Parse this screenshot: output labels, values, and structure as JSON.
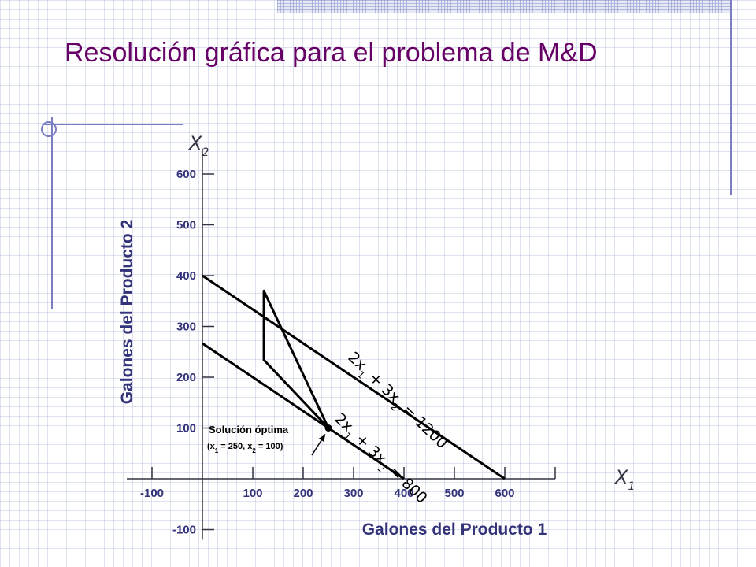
{
  "colors": {
    "title": "#660066",
    "text": "#33337a",
    "axis": "#333344",
    "line": "#000000",
    "decor": "#7b7fc1"
  },
  "chart_data": {
    "type": "line",
    "title": "Resolución gráfica para el problema de M&D",
    "xlabel": "Galones del Producto 1",
    "ylabel": "Galones del Producto 2",
    "x_axis_symbol": "X",
    "x_axis_sub": "1",
    "y_axis_symbol": "X",
    "y_axis_sub": "2",
    "xlim": [
      -150,
      700
    ],
    "ylim": [
      -120,
      650
    ],
    "x_ticks": [
      -100,
      100,
      200,
      300,
      400,
      500,
      600
    ],
    "y_ticks": [
      -100,
      100,
      200,
      300,
      400,
      500,
      600
    ],
    "series": [
      {
        "points": [
          [
            0,
            400
          ],
          [
            600,
            0
          ]
        ],
        "label_parts": [
          "2x",
          "1",
          " + 3x",
          "2",
          " = 1200"
        ]
      },
      {
        "points": [
          [
            0,
            266.7
          ],
          [
            400,
            0
          ]
        ],
        "label_parts": [
          "2x",
          "1",
          " + 3x",
          "2",
          " = 800"
        ]
      }
    ],
    "polygon": [
      [
        122,
        370
      ],
      [
        122,
        234
      ],
      [
        250,
        100
      ]
    ],
    "optimal_point": [
      250,
      100
    ],
    "optimal_label": "Solución óptima",
    "optimal_coords_parts": [
      "(x",
      "1",
      " = 250, x",
      "2",
      " = 100)"
    ]
  }
}
